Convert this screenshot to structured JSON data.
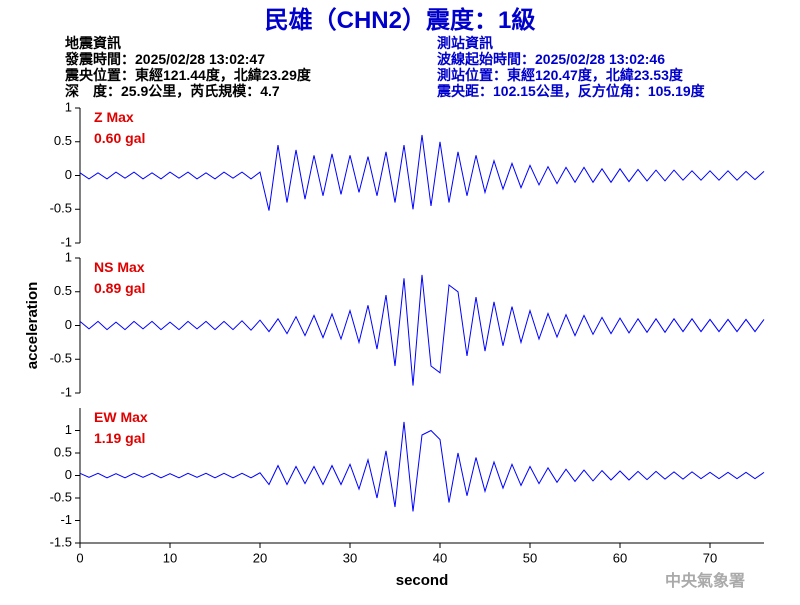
{
  "header": {
    "title": "民雄（CHN2）震度：1級",
    "left": [
      "地震資訊",
      "發震時間：2025/02/28 13:02:47",
      "震央位置：東經121.44度，北緯23.29度",
      "深　度：25.9公里，芮氏規模：4.7"
    ],
    "right": [
      "測站資訊",
      "波線起始時間：2025/02/28 13:02:46",
      "測站位置：東經120.47度，北緯23.53度",
      "震央距：102.15公里，反方位角：105.19度"
    ],
    "footer": "中央氣象署"
  },
  "chart_data": [
    {
      "type": "line",
      "annotation": [
        "Z Max",
        "0.60 gal"
      ],
      "annotation_color": "#e00000",
      "xlim": [
        0,
        76
      ],
      "ylim": [
        -1,
        1
      ],
      "yticks": [
        -1,
        -0.5,
        0,
        0.5,
        1
      ],
      "x": [
        0,
        1,
        2,
        3,
        4,
        5,
        6,
        7,
        8,
        9,
        10,
        11,
        12,
        13,
        14,
        15,
        16,
        17,
        18,
        19,
        20,
        21,
        22,
        23,
        24,
        25,
        26,
        27,
        28,
        29,
        30,
        31,
        32,
        33,
        34,
        35,
        36,
        37,
        38,
        39,
        40,
        41,
        42,
        43,
        44,
        45,
        46,
        47,
        48,
        49,
        50,
        51,
        52,
        53,
        54,
        55,
        56,
        57,
        58,
        59,
        60,
        61,
        62,
        63,
        64,
        65,
        66,
        67,
        68,
        69,
        70,
        71,
        72,
        73,
        74,
        75,
        76
      ],
      "series": [
        {
          "color": "#0000ff",
          "values": [
            0.04,
            -0.05,
            0.04,
            -0.05,
            0.05,
            -0.04,
            0.05,
            -0.05,
            0.04,
            -0.05,
            0.05,
            -0.04,
            0.05,
            -0.05,
            0.04,
            -0.05,
            0.05,
            -0.04,
            0.05,
            -0.05,
            0.05,
            -0.52,
            0.45,
            -0.4,
            0.38,
            -0.35,
            0.3,
            -0.3,
            0.32,
            -0.28,
            0.3,
            -0.25,
            0.28,
            -0.3,
            0.35,
            -0.4,
            0.45,
            -0.5,
            0.6,
            -0.45,
            0.5,
            -0.4,
            0.35,
            -0.3,
            0.3,
            -0.25,
            0.22,
            -0.2,
            0.18,
            -0.18,
            0.15,
            -0.14,
            0.13,
            -0.12,
            0.12,
            -0.1,
            0.12,
            -0.1,
            0.1,
            -0.1,
            0.1,
            -0.09,
            0.09,
            -0.08,
            0.08,
            -0.08,
            0.08,
            -0.07,
            0.07,
            -0.07,
            0.07,
            -0.07,
            0.07,
            -0.07,
            0.06,
            -0.06,
            0.06
          ]
        }
      ]
    },
    {
      "type": "line",
      "annotation": [
        "NS Max",
        "0.89 gal"
      ],
      "annotation_color": "#e00000",
      "y_label": "acceleration",
      "xlim": [
        0,
        76
      ],
      "ylim": [
        -1,
        1
      ],
      "yticks": [
        -1,
        -0.5,
        0,
        0.5,
        1
      ],
      "x": [
        0,
        1,
        2,
        3,
        4,
        5,
        6,
        7,
        8,
        9,
        10,
        11,
        12,
        13,
        14,
        15,
        16,
        17,
        18,
        19,
        20,
        21,
        22,
        23,
        24,
        25,
        26,
        27,
        28,
        29,
        30,
        31,
        32,
        33,
        34,
        35,
        36,
        37,
        38,
        39,
        40,
        41,
        42,
        43,
        44,
        45,
        46,
        47,
        48,
        49,
        50,
        51,
        52,
        53,
        54,
        55,
        56,
        57,
        58,
        59,
        60,
        61,
        62,
        63,
        64,
        65,
        66,
        67,
        68,
        69,
        70,
        71,
        72,
        73,
        74,
        75,
        76
      ],
      "series": [
        {
          "color": "#0000ff",
          "values": [
            0.06,
            -0.05,
            0.06,
            -0.06,
            0.05,
            -0.06,
            0.06,
            -0.05,
            0.06,
            -0.06,
            0.05,
            -0.06,
            0.06,
            -0.05,
            0.06,
            -0.06,
            0.06,
            -0.06,
            0.07,
            -0.07,
            0.08,
            -0.09,
            0.1,
            -0.12,
            0.13,
            -0.15,
            0.15,
            -0.18,
            0.17,
            -0.2,
            0.22,
            -0.25,
            0.3,
            -0.35,
            0.45,
            -0.6,
            0.7,
            -0.89,
            0.75,
            -0.6,
            -0.7,
            0.6,
            0.5,
            -0.45,
            0.42,
            -0.38,
            0.35,
            -0.3,
            0.28,
            -0.25,
            0.22,
            -0.2,
            0.18,
            -0.17,
            0.16,
            -0.15,
            0.15,
            -0.13,
            0.12,
            -0.12,
            0.11,
            -0.11,
            0.1,
            -0.1,
            0.1,
            -0.1,
            0.1,
            -0.09,
            0.1,
            -0.09,
            0.09,
            -0.09,
            0.09,
            -0.09,
            0.09,
            -0.09,
            0.09
          ]
        }
      ]
    },
    {
      "type": "line",
      "annotation": [
        "EW Max",
        "1.19 gal"
      ],
      "annotation_color": "#e00000",
      "x_label": "second",
      "xlim": [
        0,
        76
      ],
      "xticks": [
        0,
        10,
        20,
        30,
        40,
        50,
        60,
        70
      ],
      "ylim": [
        -1.5,
        1.5
      ],
      "yticks": [
        -1.5,
        -1,
        -0.5,
        0,
        0.5,
        1
      ],
      "x": [
        0,
        1,
        2,
        3,
        4,
        5,
        6,
        7,
        8,
        9,
        10,
        11,
        12,
        13,
        14,
        15,
        16,
        17,
        18,
        19,
        20,
        21,
        22,
        23,
        24,
        25,
        26,
        27,
        28,
        29,
        30,
        31,
        32,
        33,
        34,
        35,
        36,
        37,
        38,
        39,
        40,
        41,
        42,
        43,
        44,
        45,
        46,
        47,
        48,
        49,
        50,
        51,
        52,
        53,
        54,
        55,
        56,
        57,
        58,
        59,
        60,
        61,
        62,
        63,
        64,
        65,
        66,
        67,
        68,
        69,
        70,
        71,
        72,
        73,
        74,
        75,
        76
      ],
      "series": [
        {
          "color": "#0000ff",
          "values": [
            0.05,
            -0.04,
            0.05,
            -0.05,
            0.04,
            -0.05,
            0.05,
            -0.04,
            0.05,
            -0.05,
            0.04,
            -0.05,
            0.05,
            -0.04,
            0.05,
            -0.05,
            0.05,
            -0.05,
            0.05,
            -0.05,
            0.06,
            -0.2,
            0.22,
            -0.2,
            0.2,
            -0.18,
            0.2,
            -0.2,
            0.22,
            -0.2,
            0.25,
            -0.3,
            0.35,
            -0.5,
            0.55,
            -0.7,
            1.19,
            -0.8,
            0.9,
            1.0,
            0.8,
            -0.6,
            0.5,
            -0.45,
            0.4,
            -0.35,
            0.3,
            -0.28,
            0.25,
            -0.22,
            0.2,
            -0.18,
            0.17,
            -0.15,
            0.14,
            -0.13,
            0.12,
            -0.12,
            0.11,
            -0.1,
            0.1,
            -0.1,
            0.09,
            -0.09,
            0.09,
            -0.08,
            0.08,
            -0.08,
            0.08,
            -0.07,
            0.07,
            -0.07,
            0.07,
            -0.07,
            0.07,
            -0.07,
            0.07
          ]
        }
      ]
    }
  ]
}
